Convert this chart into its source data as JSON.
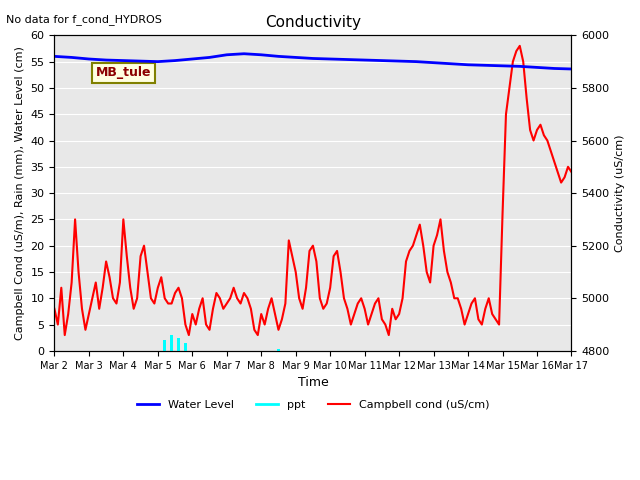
{
  "title": "Conductivity",
  "top_left_text": "No data for f_cond_HYDROS",
  "ylabel_left": "Campbell Cond (uS/m), Rain (mm), Water Level (cm)",
  "ylabel_right": "Conductivity (uS/cm)",
  "xlabel": "Time",
  "ylim_left": [
    0,
    60
  ],
  "ylim_right": [
    4800,
    6000
  ],
  "annotation_box": "MB_tule",
  "bg_color": "#e8e8e8",
  "x_tick_labels": [
    "Mar 2",
    "Mar 3",
    "Mar 4",
    "Mar 5",
    "Mar 6",
    "Mar 7",
    "Mar 8",
    "Mar 9",
    "Mar 10",
    "Mar 11",
    "Mar 12",
    "Mar 13",
    "Mar 14",
    "Mar 15",
    "Mar 16",
    "Mar 17"
  ],
  "water_level_color": "blue",
  "ppt_color": "cyan",
  "campbell_color": "red",
  "water_level_linewidth": 2,
  "campbell_linewidth": 1.5,
  "water_level_x": [
    0,
    0.5,
    1,
    1.5,
    2,
    2.5,
    3,
    3.5,
    4,
    4.5,
    5,
    5.5,
    6,
    6.5,
    7,
    7.5,
    8,
    8.5,
    9,
    9.5,
    10,
    10.5,
    11,
    11.5,
    12,
    12.5,
    13,
    13.5,
    14,
    14.5,
    15
  ],
  "water_level_y": [
    56,
    55.8,
    55.5,
    55.3,
    55.2,
    55.1,
    55.0,
    55.2,
    55.5,
    55.8,
    56.3,
    56.5,
    56.3,
    56.0,
    55.8,
    55.6,
    55.5,
    55.4,
    55.3,
    55.2,
    55.1,
    55.0,
    54.8,
    54.6,
    54.4,
    54.3,
    54.2,
    54.1,
    53.9,
    53.7,
    53.6
  ],
  "ppt_x": [
    3.2,
    3.4,
    3.6,
    3.8,
    6.5
  ],
  "ppt_y": [
    2.0,
    3.0,
    2.5,
    1.5,
    0.3
  ],
  "campbell_x": [
    0,
    0.1,
    0.2,
    0.3,
    0.4,
    0.5,
    0.6,
    0.7,
    0.8,
    0.9,
    1.0,
    1.1,
    1.2,
    1.3,
    1.4,
    1.5,
    1.6,
    1.7,
    1.8,
    1.9,
    2.0,
    2.1,
    2.2,
    2.3,
    2.4,
    2.5,
    2.6,
    2.7,
    2.8,
    2.9,
    3.0,
    3.1,
    3.2,
    3.3,
    3.4,
    3.5,
    3.6,
    3.7,
    3.8,
    3.9,
    4.0,
    4.1,
    4.2,
    4.3,
    4.4,
    4.5,
    4.6,
    4.7,
    4.8,
    4.9,
    5.0,
    5.1,
    5.2,
    5.3,
    5.4,
    5.5,
    5.6,
    5.7,
    5.8,
    5.9,
    6.0,
    6.1,
    6.2,
    6.3,
    6.4,
    6.5,
    6.6,
    6.7,
    6.8,
    6.9,
    7.0,
    7.1,
    7.2,
    7.3,
    7.4,
    7.5,
    7.6,
    7.7,
    7.8,
    7.9,
    8.0,
    8.1,
    8.2,
    8.3,
    8.4,
    8.5,
    8.6,
    8.7,
    8.8,
    8.9,
    9.0,
    9.1,
    9.2,
    9.3,
    9.4,
    9.5,
    9.6,
    9.7,
    9.8,
    9.9,
    10.0,
    10.1,
    10.2,
    10.3,
    10.4,
    10.5,
    10.6,
    10.7,
    10.8,
    10.9,
    11.0,
    11.1,
    11.2,
    11.3,
    11.4,
    11.5,
    11.6,
    11.7,
    11.8,
    11.9,
    12.0,
    12.1,
    12.2,
    12.3,
    12.4,
    12.5,
    12.6,
    12.7,
    12.8,
    12.9,
    13.0,
    13.1,
    13.2,
    13.3,
    13.4,
    13.5,
    13.6,
    13.7,
    13.8,
    13.9,
    14.0,
    14.1,
    14.2,
    14.3,
    14.4,
    14.5,
    14.6,
    14.7,
    14.8,
    14.9,
    15.0
  ],
  "campbell_y": [
    8,
    5,
    12,
    3,
    7,
    13,
    25,
    15,
    8,
    4,
    7,
    10,
    13,
    8,
    12,
    17,
    14,
    10,
    9,
    13,
    25,
    18,
    12,
    8,
    10,
    18,
    20,
    15,
    10,
    9,
    12,
    14,
    10,
    9,
    9,
    11,
    12,
    10,
    5,
    3,
    7,
    5,
    8,
    10,
    5,
    4,
    8,
    11,
    10,
    8,
    9,
    10,
    12,
    10,
    9,
    11,
    10,
    8,
    4,
    3,
    7,
    5,
    8,
    10,
    7,
    4,
    6,
    9,
    21,
    18,
    15,
    10,
    8,
    12,
    19,
    20,
    17,
    10,
    8,
    9,
    12,
    18,
    19,
    15,
    10,
    8,
    5,
    7,
    9,
    10,
    8,
    5,
    7,
    9,
    10,
    6,
    5,
    3,
    8,
    6,
    7,
    10,
    17,
    19,
    20,
    22,
    24,
    20,
    15,
    13,
    20,
    22,
    25,
    19,
    15,
    13,
    10,
    10,
    8,
    5,
    7,
    9,
    10,
    6,
    5,
    8,
    10,
    7,
    6,
    5,
    26,
    45,
    50,
    55,
    57,
    58,
    55,
    48,
    42,
    40,
    42,
    43,
    41,
    40,
    38,
    36,
    34,
    32,
    33,
    35,
    34
  ]
}
